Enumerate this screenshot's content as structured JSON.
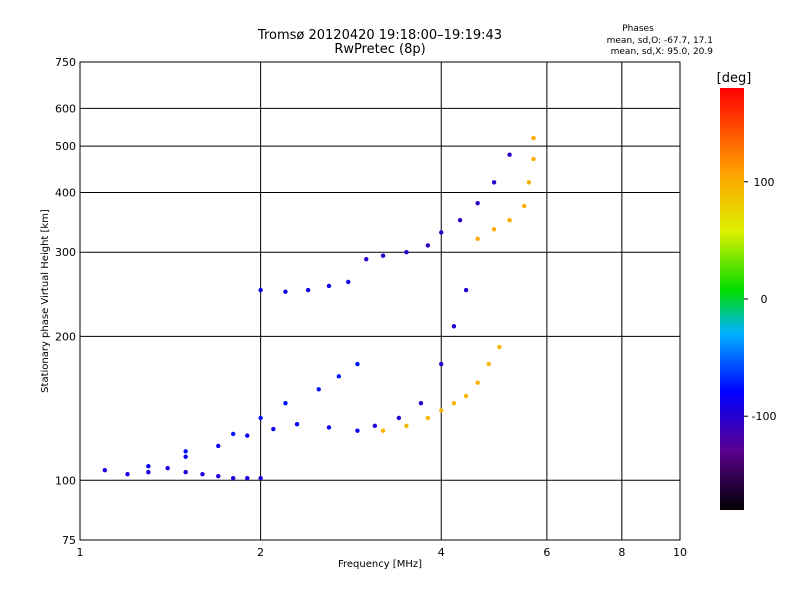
{
  "chart_data": {
    "type": "scatter",
    "title": "Tromsø 20120420 19:18:00–19:19:43",
    "subtitle": "RwPretec (8p)",
    "xlabel": "Frequency [MHz]",
    "ylabel": "Stationary phase Virtual Height [km]",
    "x_scale": "log",
    "y_scale": "log",
    "xlim": [
      1,
      10
    ],
    "ylim": [
      75,
      750
    ],
    "x_ticks": [
      1,
      2,
      4,
      6,
      8,
      10
    ],
    "x_tick_labels": [
      "1",
      "2",
      "4",
      "6",
      "8",
      "10"
    ],
    "y_ticks": [
      75,
      100,
      200,
      300,
      400,
      500,
      600,
      750
    ],
    "y_tick_labels": [
      "75",
      "100",
      "200",
      "300",
      "400",
      "500",
      "600",
      "750"
    ],
    "grid": true,
    "stats": {
      "heading": "Phases",
      "line_o": "mean, sd,O: -67.7, 17.1",
      "line_x": "mean, sd,X:  95.0, 20.9"
    },
    "colorbar": {
      "label": "[deg]",
      "range": [
        -180,
        180
      ],
      "ticks": [
        100,
        0,
        -100
      ],
      "tick_labels": [
        "100",
        "0",
        "-100"
      ]
    },
    "traces": [
      {
        "phase": -95,
        "points": [
          [
            1.1,
            105
          ],
          [
            1.2,
            103
          ],
          [
            1.3,
            104
          ],
          [
            1.4,
            106
          ],
          [
            1.5,
            104
          ],
          [
            1.6,
            103
          ],
          [
            1.7,
            102
          ],
          [
            1.8,
            101
          ],
          [
            1.9,
            101
          ],
          [
            2.0,
            101
          ]
        ]
      },
      {
        "phase": -85,
        "points": [
          [
            1.3,
            107
          ],
          [
            1.5,
            112
          ],
          [
            1.7,
            118
          ],
          [
            1.9,
            124
          ],
          [
            2.1,
            128
          ],
          [
            2.3,
            131
          ],
          [
            2.6,
            129
          ],
          [
            2.9,
            127
          ]
        ]
      },
      {
        "phase": -75,
        "points": [
          [
            1.5,
            115
          ],
          [
            1.8,
            125
          ],
          [
            2.0,
            135
          ],
          [
            2.2,
            145
          ],
          [
            2.5,
            155
          ],
          [
            2.7,
            165
          ],
          [
            2.9,
            175
          ]
        ]
      },
      {
        "phase": -90,
        "points": [
          [
            2.0,
            250
          ],
          [
            2.2,
            248
          ],
          [
            2.4,
            250
          ],
          [
            2.6,
            255
          ],
          [
            2.8,
            260
          ]
        ]
      },
      {
        "phase": -105,
        "points": [
          [
            3.0,
            290
          ],
          [
            3.2,
            295
          ],
          [
            3.5,
            300
          ],
          [
            3.8,
            310
          ],
          [
            4.0,
            330
          ],
          [
            4.3,
            350
          ],
          [
            4.6,
            380
          ],
          [
            4.9,
            420
          ],
          [
            5.2,
            480
          ]
        ]
      },
      {
        "phase": -100,
        "points": [
          [
            3.1,
            130
          ],
          [
            3.4,
            135
          ],
          [
            3.7,
            145
          ],
          [
            4.0,
            175
          ],
          [
            4.2,
            210
          ],
          [
            4.4,
            250
          ]
        ]
      },
      {
        "phase": 95,
        "points": [
          [
            3.2,
            127
          ],
          [
            3.5,
            130
          ],
          [
            3.8,
            135
          ],
          [
            4.0,
            140
          ],
          [
            4.2,
            145
          ],
          [
            4.4,
            150
          ],
          [
            4.6,
            160
          ],
          [
            4.8,
            175
          ],
          [
            5.0,
            190
          ]
        ]
      },
      {
        "phase": 100,
        "points": [
          [
            4.6,
            320
          ],
          [
            4.9,
            335
          ],
          [
            5.2,
            350
          ],
          [
            5.5,
            375
          ],
          [
            5.6,
            420
          ],
          [
            5.7,
            470
          ],
          [
            5.7,
            520
          ]
        ]
      }
    ]
  }
}
